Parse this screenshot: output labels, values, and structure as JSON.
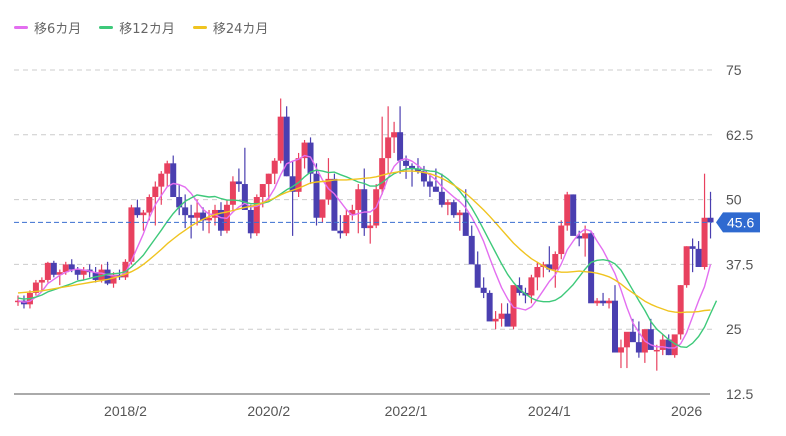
{
  "legend": [
    {
      "label": "移6カ月",
      "color": "#e36ef0"
    },
    {
      "label": "移12カ月",
      "color": "#3ec97a"
    },
    {
      "label": "移24カ月",
      "color": "#f0c420"
    }
  ],
  "colors": {
    "up": "#e8415f",
    "down": "#4a3fb0",
    "grid": "#cccccc",
    "current_line": "#3a6fd0",
    "current_label_bg": "#2f6ad0"
  },
  "current_price": {
    "value": 45.6,
    "label": "45.6"
  },
  "chart_data": {
    "type": "candlestick",
    "title": "",
    "xlabel": "",
    "ylabel": "",
    "ylim": [
      12.5,
      75
    ],
    "y_ticks": [
      "75",
      "62.5",
      "50",
      "37.5",
      "25",
      "12.5"
    ],
    "y_tick_values": [
      75,
      62.5,
      50,
      37.5,
      25,
      12.5
    ],
    "x_ticks": [
      "2018/2",
      "2020/2",
      "2022/1",
      "2024/1",
      "2026"
    ],
    "x_tick_index": [
      18,
      42,
      65,
      89,
      112
    ],
    "grid": true,
    "legend_position": "top-left",
    "series_names": [
      "移6カ月",
      "移12カ月",
      "移24カ月"
    ],
    "candles": [
      [
        30.5,
        31.5,
        29.5,
        30.5
      ],
      [
        30.5,
        31.5,
        29,
        29.8
      ],
      [
        29.8,
        32.5,
        29,
        32
      ],
      [
        32,
        34.5,
        31.5,
        34
      ],
      [
        34,
        35,
        32.5,
        34.5
      ],
      [
        34.5,
        38,
        34,
        37.8
      ],
      [
        37.8,
        38.2,
        35,
        35.5
      ],
      [
        35.5,
        36.5,
        33.5,
        36
      ],
      [
        36,
        38,
        35.5,
        37.5
      ],
      [
        37.5,
        38.5,
        36,
        36.5
      ],
      [
        36.5,
        37,
        34.5,
        35.5
      ],
      [
        35.5,
        37,
        34.5,
        36.5
      ],
      [
        36.5,
        37.5,
        35,
        36
      ],
      [
        36,
        37,
        34,
        34.5
      ],
      [
        34.5,
        37.5,
        34,
        36.5
      ],
      [
        36.5,
        38,
        33.5,
        33.8
      ],
      [
        33.8,
        36,
        33,
        35.5
      ],
      [
        35.5,
        36.5,
        34.5,
        35
      ],
      [
        35,
        38.5,
        34.5,
        38
      ],
      [
        38,
        49,
        37.5,
        48.5
      ],
      [
        48.5,
        50,
        46.5,
        47
      ],
      [
        47,
        48,
        44,
        47.5
      ],
      [
        47.5,
        51,
        46,
        50.5
      ],
      [
        50.5,
        53.5,
        45,
        52.5
      ],
      [
        52.5,
        55.5,
        49,
        55
      ],
      [
        55,
        57.5,
        52.5,
        57
      ],
      [
        57,
        58.5,
        51,
        50.5
      ],
      [
        50.5,
        53,
        47,
        48.5
      ],
      [
        48.5,
        51,
        44.5,
        47
      ],
      [
        47,
        49,
        42.5,
        46.5
      ],
      [
        46.5,
        50,
        45,
        47.5
      ],
      [
        47.5,
        48.5,
        44,
        46
      ],
      [
        46,
        48,
        43.5,
        46.5
      ],
      [
        46.5,
        49,
        45,
        48
      ],
      [
        48,
        49.5,
        43,
        44
      ],
      [
        44,
        50,
        43.5,
        49
      ],
      [
        49,
        54.5,
        48,
        53.5
      ],
      [
        53.5,
        56,
        51.5,
        53
      ],
      [
        53,
        60,
        49,
        48
      ],
      [
        48,
        49,
        42.5,
        43.5
      ],
      [
        43.5,
        51,
        43,
        50.5
      ],
      [
        50.5,
        53,
        48.5,
        53
      ],
      [
        53,
        55,
        50,
        55
      ],
      [
        55,
        58,
        53,
        57.5
      ],
      [
        57.5,
        69.5,
        57,
        66
      ],
      [
        66,
        68,
        54.5,
        54.5
      ],
      [
        54.5,
        57.5,
        43,
        51.5
      ],
      [
        51.5,
        59,
        50.5,
        58
      ],
      [
        58,
        61.5,
        56,
        61
      ],
      [
        61,
        62,
        53,
        55
      ],
      [
        55,
        57,
        45,
        46.5
      ],
      [
        46.5,
        50,
        45.5,
        50
      ],
      [
        50,
        58,
        49,
        54
      ],
      [
        54,
        55,
        46,
        44
      ],
      [
        44,
        47,
        42.5,
        43.5
      ],
      [
        43.5,
        48,
        43,
        47
      ],
      [
        47,
        49,
        46,
        48
      ],
      [
        48,
        53,
        43.5,
        52
      ],
      [
        52,
        56,
        43,
        44.5
      ],
      [
        44.5,
        47,
        41.5,
        45
      ],
      [
        45,
        53,
        44.5,
        52
      ],
      [
        52,
        66,
        51,
        58
      ],
      [
        58,
        68,
        55,
        62
      ],
      [
        62,
        65,
        59,
        63
      ],
      [
        63,
        68,
        55,
        57.5
      ],
      [
        57.5,
        58.5,
        54,
        56.5
      ],
      [
        56.5,
        57,
        52.5,
        56
      ],
      [
        56,
        58,
        55,
        55.5
      ],
      [
        55.5,
        56.5,
        52.5,
        53.5
      ],
      [
        53.5,
        55,
        50.5,
        52.5
      ],
      [
        52.5,
        56,
        52,
        51.5
      ],
      [
        51.5,
        55,
        48.5,
        49
      ],
      [
        49,
        50,
        47,
        49.5
      ],
      [
        49.5,
        50,
        46.5,
        47
      ],
      [
        47,
        48,
        44,
        47.5
      ],
      [
        47.5,
        52,
        46,
        43
      ],
      [
        43,
        45,
        40,
        37.5
      ],
      [
        37.5,
        40,
        36,
        33
      ],
      [
        33,
        35,
        31,
        32
      ],
      [
        32,
        32.5,
        29,
        26.5
      ],
      [
        26.5,
        28.5,
        25,
        27
      ],
      [
        27,
        30,
        25.5,
        28
      ],
      [
        28,
        30,
        26,
        25.5
      ],
      [
        25.5,
        33,
        25,
        33.5
      ],
      [
        33.5,
        35,
        31.5,
        32
      ],
      [
        32,
        33,
        30,
        31.5
      ],
      [
        31.5,
        35.5,
        30,
        35
      ],
      [
        35,
        38,
        32.5,
        37
      ],
      [
        37,
        38,
        35,
        37.5
      ],
      [
        37.5,
        41,
        36,
        36.5
      ],
      [
        36.5,
        40,
        33,
        39.5
      ],
      [
        39.5,
        46,
        38.5,
        45
      ],
      [
        45,
        51.5,
        44,
        51
      ],
      [
        51,
        51,
        45,
        43
      ],
      [
        43,
        44,
        41,
        42.5
      ],
      [
        42.5,
        45,
        39,
        43.5
      ],
      [
        43.5,
        44,
        36,
        30
      ],
      [
        30,
        31,
        29.5,
        30.5
      ],
      [
        30.5,
        32,
        29.5,
        30
      ],
      [
        30,
        31,
        29,
        30.5
      ],
      [
        30.5,
        33.5,
        27.5,
        20.5
      ],
      [
        20.5,
        23,
        17.5,
        21.5
      ],
      [
        21.5,
        23,
        17.5,
        24.5
      ],
      [
        24.5,
        27,
        23,
        22.5
      ],
      [
        22.5,
        26.5,
        19.5,
        20.5
      ],
      [
        20.5,
        24,
        18.5,
        25
      ],
      [
        25,
        27,
        22.5,
        21
      ],
      [
        21,
        22,
        17,
        21
      ],
      [
        21,
        24,
        20,
        23
      ],
      [
        23,
        24,
        20,
        20
      ],
      [
        20,
        22.5,
        19.5,
        24
      ],
      [
        24,
        33.5,
        23,
        33.5
      ],
      [
        33.5,
        41,
        33,
        41
      ],
      [
        41,
        42.5,
        36,
        40.5
      ],
      [
        40.5,
        42,
        38,
        37
      ],
      [
        37,
        55,
        36.5,
        46.5
      ],
      [
        46.5,
        51.5,
        42.5,
        45.6
      ]
    ],
    "series": [
      {
        "name": "移6カ月",
        "color": "#e36ef0",
        "values": [
          30.5,
          30.2,
          30.4,
          31.2,
          32.3,
          33.8,
          34.6,
          35.4,
          36,
          36.4,
          36.6,
          36.4,
          36.2,
          35.9,
          35.8,
          35.5,
          35.3,
          35.2,
          35.9,
          38.2,
          40.8,
          43.4,
          46.5,
          49,
          50.8,
          52.5,
          53.1,
          52.9,
          52.4,
          51.2,
          49.6,
          48.1,
          47.2,
          47.1,
          46.5,
          46.4,
          47.6,
          48.6,
          49.3,
          48.6,
          48.7,
          49.3,
          50.3,
          52.2,
          54.8,
          56.9,
          57.4,
          57.8,
          58.5,
          58.2,
          56,
          53.8,
          52.1,
          51.1,
          49.6,
          48.1,
          47,
          47.3,
          47.6,
          47.6,
          48.5,
          51.2,
          54.2,
          56.4,
          57.6,
          57.9,
          57.4,
          56.6,
          55.6,
          54.7,
          53.8,
          52.5,
          51.5,
          50.5,
          49.6,
          48.4,
          46.6,
          44.4,
          41.9,
          38.8,
          35.8,
          33,
          30.9,
          29.2,
          29,
          28.7,
          29.3,
          30.8,
          32.5,
          34.2,
          35.5,
          37.6,
          40.3,
          42,
          43.5,
          44.3,
          43.9,
          42,
          40.2,
          38,
          35.7,
          32.6,
          29.2,
          26.2,
          24.4,
          22.7,
          22,
          21.6,
          21.6,
          21.4,
          21.4,
          22.2,
          24.3,
          27.4,
          30.5,
          33.2,
          37.5
        ]
      },
      {
        "name": "移12カ月",
        "color": "#3ec97a",
        "values": [
          31,
          30.8,
          30.9,
          31.2,
          31.6,
          32.2,
          32.6,
          33,
          33.4,
          33.8,
          34.3,
          34.5,
          34.8,
          35.1,
          35.3,
          35.6,
          35.7,
          35.8,
          36.1,
          37,
          38.1,
          39.3,
          40.9,
          42.5,
          44.1,
          45.8,
          47.3,
          48.6,
          49.7,
          50.3,
          50.9,
          50.7,
          50.5,
          50.6,
          50.2,
          49.9,
          49.9,
          49.8,
          49.5,
          49.2,
          49.2,
          49.3,
          49.6,
          50.3,
          51.1,
          51.9,
          52.5,
          53.3,
          54.4,
          55.3,
          55.7,
          55.5,
          55.2,
          55.3,
          54.8,
          54.4,
          53.9,
          53.4,
          53.1,
          52.6,
          52.6,
          53.3,
          54.2,
          55,
          55.5,
          55.9,
          56,
          55.9,
          55.7,
          55.5,
          55.4,
          54.8,
          54,
          52.9,
          51.6,
          50.1,
          48.4,
          46.4,
          44.2,
          42,
          39.8,
          37.6,
          35.6,
          34,
          32.7,
          31.8,
          31,
          30.5,
          30.3,
          30.3,
          30.6,
          31.3,
          32.4,
          33.6,
          35.1,
          36.6,
          37.9,
          38.3,
          38.4,
          38.2,
          37.6,
          36.4,
          34.5,
          32.5,
          30.5,
          28.6,
          26.5,
          25,
          24,
          23,
          22.2,
          21.6,
          21.5,
          22.3,
          23.6,
          25.4,
          28,
          30.5
        ]
      },
      {
        "name": "移24カ月",
        "color": "#f0c420",
        "values": [
          32,
          32.1,
          32.2,
          32.3,
          32.4,
          32.6,
          32.8,
          33,
          33.2,
          33.4,
          33.6,
          33.8,
          34,
          34.2,
          34.4,
          34.6,
          34.9,
          35.2,
          35.6,
          36.1,
          36.7,
          37.5,
          38.4,
          39.4,
          40.4,
          41.5,
          42.4,
          43.3,
          44.1,
          44.9,
          45.6,
          46.2,
          46.7,
          47.1,
          47.4,
          47.6,
          47.9,
          48.2,
          48.5,
          48.7,
          49,
          49.4,
          49.8,
          50.3,
          50.9,
          51.4,
          51.8,
          52.2,
          52.7,
          53.2,
          53.4,
          53.5,
          53.6,
          53.8,
          53.8,
          53.8,
          53.9,
          54,
          54.1,
          54.2,
          54.4,
          54.7,
          55,
          55.2,
          55.4,
          55.5,
          55.5,
          55.4,
          55.2,
          55,
          54.6,
          54.1,
          53.5,
          52.8,
          52,
          51.2,
          50.2,
          49.1,
          48,
          46.8,
          45.5,
          44.2,
          42.9,
          41.6,
          40.5,
          39.5,
          38.6,
          37.9,
          37.2,
          36.6,
          36.2,
          36,
          36,
          36.1,
          36.2,
          36.1,
          36,
          35.8,
          35.5,
          35.1,
          34.5,
          33.7,
          32.8,
          32,
          31.2,
          30.4,
          29.8,
          29.3,
          28.9,
          28.5,
          28.3,
          28.2,
          28.3,
          28.3,
          28.4,
          28.6,
          28.7
        ]
      }
    ]
  }
}
